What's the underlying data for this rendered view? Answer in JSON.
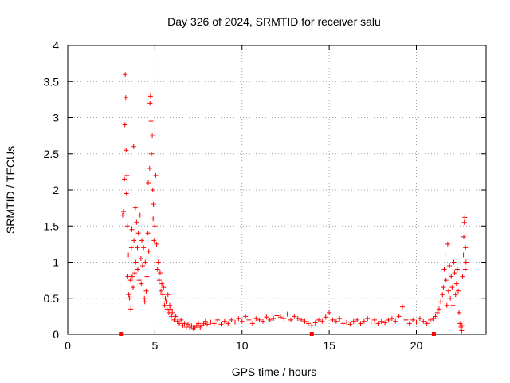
{
  "chart_data": {
    "type": "scatter",
    "title": "Day 326 of 2024, SRMTID for receiver salu",
    "xlabel": "GPS time / hours",
    "ylabel": "SRMTID / TECUs",
    "xlim": [
      0,
      24
    ],
    "ylim": [
      0,
      4
    ],
    "xticks": [
      0,
      5,
      10,
      15,
      20
    ],
    "xtick_labels": [
      "0",
      "5",
      "10",
      "15",
      "20"
    ],
    "yticks": [
      0,
      0.5,
      1,
      1.5,
      2,
      2.5,
      3,
      3.5,
      4
    ],
    "ytick_labels": [
      "0",
      "0.5",
      "1",
      "1.5",
      "2",
      "2.5",
      "3",
      "3.5",
      "4"
    ],
    "grid": true,
    "marker": "+",
    "series": [
      {
        "name": "SRMTID",
        "color": "#ff0000",
        "points": [
          [
            3.15,
            1.65
          ],
          [
            3.2,
            1.7
          ],
          [
            3.25,
            2.15
          ],
          [
            3.28,
            2.9
          ],
          [
            3.3,
            3.6
          ],
          [
            3.33,
            3.28
          ],
          [
            3.35,
            2.55
          ],
          [
            3.37,
            1.95
          ],
          [
            3.4,
            2.2
          ],
          [
            3.42,
            1.5
          ],
          [
            3.45,
            0.8
          ],
          [
            3.48,
            1.1
          ],
          [
            3.5,
            0.55
          ],
          [
            3.55,
            0.5
          ],
          [
            3.6,
            0.75
          ],
          [
            3.62,
            0.35
          ],
          [
            3.65,
            1.2
          ],
          [
            3.68,
            1.45
          ],
          [
            3.7,
            0.8
          ],
          [
            3.75,
            0.65
          ],
          [
            3.78,
            2.6
          ],
          [
            3.8,
            1.3
          ],
          [
            3.85,
            0.85
          ],
          [
            3.88,
            1.75
          ],
          [
            3.9,
            1.0
          ],
          [
            3.95,
            1.55
          ],
          [
            4.0,
            1.2
          ],
          [
            4.02,
            0.9
          ],
          [
            4.05,
            1.4
          ],
          [
            4.1,
            0.75
          ],
          [
            4.15,
            1.65
          ],
          [
            4.2,
            1.05
          ],
          [
            4.22,
            0.7
          ],
          [
            4.25,
            1.3
          ],
          [
            4.3,
            0.95
          ],
          [
            4.35,
            1.2
          ],
          [
            4.4,
            0.5
          ],
          [
            4.42,
            0.45
          ],
          [
            4.45,
            1.0
          ],
          [
            4.5,
            0.6
          ],
          [
            4.55,
            0.8
          ],
          [
            4.6,
            1.4
          ],
          [
            4.62,
            2.1
          ],
          [
            4.65,
            1.15
          ],
          [
            4.7,
            2.3
          ],
          [
            4.72,
            3.2
          ],
          [
            4.75,
            3.3
          ],
          [
            4.78,
            2.95
          ],
          [
            4.8,
            2.5
          ],
          [
            4.85,
            2.75
          ],
          [
            4.88,
            2.0
          ],
          [
            4.9,
            1.6
          ],
          [
            4.92,
            1.8
          ],
          [
            4.95,
            1.3
          ],
          [
            5.0,
            1.5
          ],
          [
            5.05,
            2.2
          ],
          [
            5.1,
            1.25
          ],
          [
            5.15,
            0.9
          ],
          [
            5.2,
            1.0
          ],
          [
            5.25,
            0.75
          ],
          [
            5.3,
            0.85
          ],
          [
            5.35,
            0.6
          ],
          [
            5.4,
            0.7
          ],
          [
            5.45,
            0.55
          ],
          [
            5.5,
            0.65
          ],
          [
            5.55,
            0.4
          ],
          [
            5.6,
            0.5
          ],
          [
            5.65,
            0.45
          ],
          [
            5.7,
            0.35
          ],
          [
            5.75,
            0.55
          ],
          [
            5.8,
            0.3
          ],
          [
            5.85,
            0.4
          ],
          [
            5.9,
            0.35
          ],
          [
            5.95,
            0.25
          ],
          [
            6.0,
            0.3
          ],
          [
            6.1,
            0.2
          ],
          [
            6.2,
            0.25
          ],
          [
            6.3,
            0.18
          ],
          [
            6.4,
            0.15
          ],
          [
            6.5,
            0.2
          ],
          [
            6.6,
            0.12
          ],
          [
            6.7,
            0.15
          ],
          [
            6.8,
            0.1
          ],
          [
            6.9,
            0.14
          ],
          [
            7.0,
            0.1
          ],
          [
            7.1,
            0.12
          ],
          [
            7.2,
            0.08
          ],
          [
            7.3,
            0.1
          ],
          [
            7.4,
            0.12
          ],
          [
            7.5,
            0.15
          ],
          [
            7.6,
            0.1
          ],
          [
            7.7,
            0.13
          ],
          [
            7.8,
            0.15
          ],
          [
            7.9,
            0.18
          ],
          [
            8.0,
            0.14
          ],
          [
            8.2,
            0.17
          ],
          [
            8.4,
            0.15
          ],
          [
            8.6,
            0.2
          ],
          [
            8.8,
            0.14
          ],
          [
            9.0,
            0.18
          ],
          [
            9.2,
            0.15
          ],
          [
            9.4,
            0.2
          ],
          [
            9.6,
            0.17
          ],
          [
            9.8,
            0.22
          ],
          [
            10.0,
            0.18
          ],
          [
            10.2,
            0.25
          ],
          [
            10.4,
            0.2
          ],
          [
            10.6,
            0.15
          ],
          [
            10.8,
            0.22
          ],
          [
            11.0,
            0.2
          ],
          [
            11.2,
            0.18
          ],
          [
            11.4,
            0.24
          ],
          [
            11.6,
            0.2
          ],
          [
            11.8,
            0.22
          ],
          [
            12.0,
            0.26
          ],
          [
            12.2,
            0.24
          ],
          [
            12.4,
            0.22
          ],
          [
            12.6,
            0.28
          ],
          [
            12.8,
            0.2
          ],
          [
            13.0,
            0.25
          ],
          [
            13.2,
            0.22
          ],
          [
            13.4,
            0.2
          ],
          [
            13.6,
            0.18
          ],
          [
            13.8,
            0.15
          ],
          [
            14.0,
            0.12
          ],
          [
            14.2,
            0.16
          ],
          [
            14.4,
            0.2
          ],
          [
            14.6,
            0.18
          ],
          [
            14.8,
            0.24
          ],
          [
            15.0,
            0.3
          ],
          [
            15.2,
            0.2
          ],
          [
            15.4,
            0.18
          ],
          [
            15.6,
            0.22
          ],
          [
            15.8,
            0.15
          ],
          [
            16.0,
            0.17
          ],
          [
            16.2,
            0.14
          ],
          [
            16.4,
            0.18
          ],
          [
            16.6,
            0.2
          ],
          [
            16.8,
            0.15
          ],
          [
            17.0,
            0.18
          ],
          [
            17.2,
            0.22
          ],
          [
            17.4,
            0.17
          ],
          [
            17.6,
            0.2
          ],
          [
            17.8,
            0.15
          ],
          [
            18.0,
            0.18
          ],
          [
            18.2,
            0.16
          ],
          [
            18.4,
            0.2
          ],
          [
            18.6,
            0.22
          ],
          [
            18.8,
            0.18
          ],
          [
            19.0,
            0.25
          ],
          [
            19.2,
            0.38
          ],
          [
            19.4,
            0.2
          ],
          [
            19.6,
            0.15
          ],
          [
            19.8,
            0.2
          ],
          [
            20.0,
            0.17
          ],
          [
            20.2,
            0.22
          ],
          [
            20.4,
            0.18
          ],
          [
            20.6,
            0.15
          ],
          [
            20.8,
            0.2
          ],
          [
            21.0,
            0.22
          ],
          [
            21.1,
            0.25
          ],
          [
            21.2,
            0.3
          ],
          [
            21.3,
            0.35
          ],
          [
            21.4,
            0.45
          ],
          [
            21.5,
            0.55
          ],
          [
            21.55,
            0.65
          ],
          [
            21.6,
            0.9
          ],
          [
            21.65,
            1.1
          ],
          [
            21.7,
            0.75
          ],
          [
            21.75,
            0.4
          ],
          [
            21.8,
            1.25
          ],
          [
            21.85,
            0.6
          ],
          [
            21.9,
            0.95
          ],
          [
            21.95,
            0.5
          ],
          [
            22.0,
            0.8
          ],
          [
            22.05,
            0.65
          ],
          [
            22.1,
            0.4
          ],
          [
            22.15,
            1.0
          ],
          [
            22.2,
            0.85
          ],
          [
            22.25,
            0.55
          ],
          [
            22.3,
            0.7
          ],
          [
            22.35,
            0.9
          ],
          [
            22.4,
            0.6
          ],
          [
            22.45,
            0.3
          ],
          [
            22.5,
            0.15
          ],
          [
            22.55,
            0.1
          ],
          [
            22.6,
            0.05
          ],
          [
            22.62,
            0.12
          ],
          [
            22.65,
            0.8
          ],
          [
            22.7,
            1.1
          ],
          [
            22.72,
            1.35
          ],
          [
            22.75,
            1.55
          ],
          [
            22.78,
            1.62
          ],
          [
            22.8,
            0.9
          ],
          [
            22.82,
            1.2
          ],
          [
            22.85,
            1.0
          ]
        ]
      }
    ],
    "axis_points": [
      {
        "x": 3.05,
        "y": 0
      },
      {
        "x": 14.0,
        "y": 0
      },
      {
        "x": 21.0,
        "y": 0
      }
    ]
  }
}
